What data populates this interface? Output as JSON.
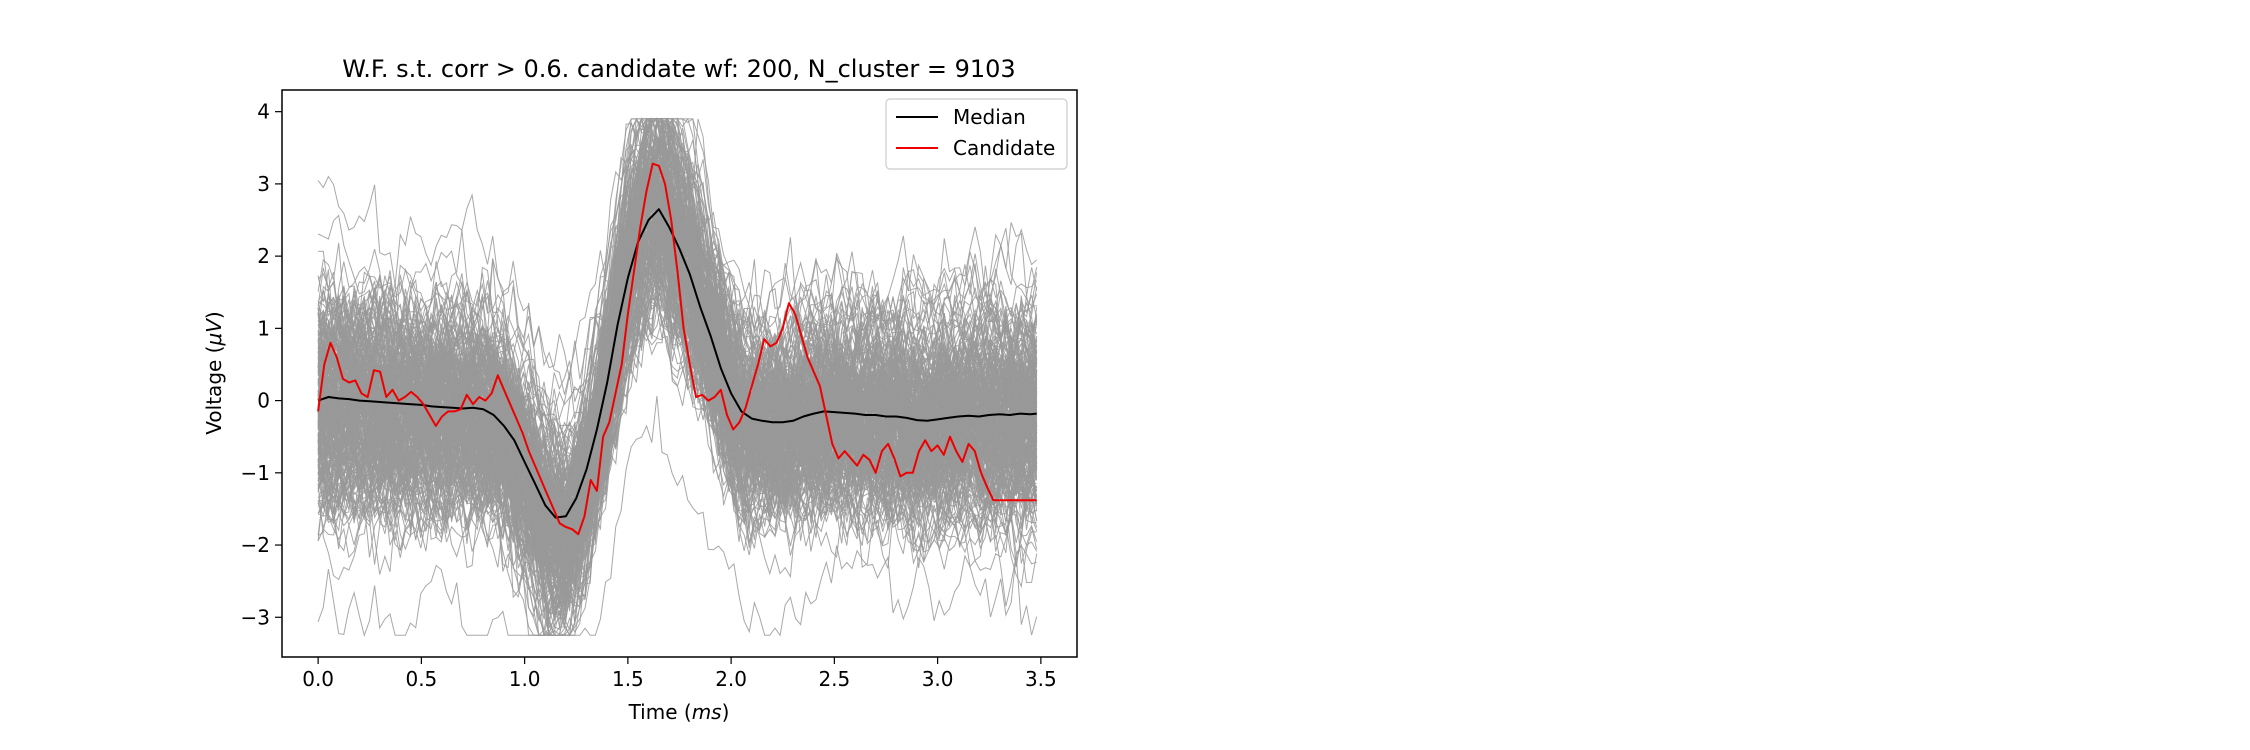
{
  "chart_data": {
    "type": "line",
    "title": "W.F. s.t. corr > 0.6. candidate wf: 200, N_cluster = 9103",
    "xlabel_prefix": "Time (",
    "xlabel_unit": "ms",
    "xlabel_suffix": ")",
    "ylabel_prefix": "Voltage (",
    "ylabel_unit": "μV",
    "ylabel_suffix": ")",
    "xlim": [
      -0.175,
      3.675
    ],
    "ylim": [
      -3.55,
      4.3
    ],
    "xticks": [
      0.0,
      0.5,
      1.0,
      1.5,
      2.0,
      2.5,
      3.0,
      3.5
    ],
    "xtick_labels": [
      "0.0",
      "0.5",
      "1.0",
      "1.5",
      "2.0",
      "2.5",
      "3.0",
      "3.5"
    ],
    "yticks": [
      -3,
      -2,
      -1,
      0,
      1,
      2,
      3,
      4
    ],
    "ytick_labels": [
      "−3",
      "−2",
      "−1",
      "0",
      "1",
      "2",
      "3",
      "4"
    ],
    "grid": false,
    "legend_position": "upper right",
    "legend": [
      {
        "label": "Median",
        "color": "#000000"
      },
      {
        "label": "Candidate",
        "color": "#ee0000"
      }
    ],
    "background_waveforms_color": "#999999",
    "series": [
      {
        "name": "Median",
        "color": "#000000",
        "x": [
          0.0,
          0.05,
          0.1,
          0.15,
          0.2,
          0.25,
          0.3,
          0.35,
          0.4,
          0.45,
          0.5,
          0.55,
          0.6,
          0.65,
          0.7,
          0.75,
          0.8,
          0.85,
          0.9,
          0.95,
          1.0,
          1.05,
          1.1,
          1.15,
          1.2,
          1.25,
          1.3,
          1.35,
          1.4,
          1.45,
          1.5,
          1.55,
          1.6,
          1.65,
          1.7,
          1.75,
          1.8,
          1.85,
          1.9,
          1.95,
          2.0,
          2.05,
          2.1,
          2.15,
          2.2,
          2.25,
          2.3,
          2.35,
          2.4,
          2.45,
          2.5,
          2.55,
          2.6,
          2.65,
          2.7,
          2.75,
          2.8,
          2.85,
          2.9,
          2.95,
          3.0,
          3.05,
          3.1,
          3.15,
          3.2,
          3.25,
          3.3,
          3.35,
          3.4,
          3.45,
          3.48
        ],
        "y": [
          0.0,
          0.05,
          0.03,
          0.02,
          0.0,
          -0.01,
          -0.02,
          -0.03,
          -0.04,
          -0.05,
          -0.06,
          -0.08,
          -0.09,
          -0.1,
          -0.11,
          -0.1,
          -0.12,
          -0.2,
          -0.35,
          -0.55,
          -0.85,
          -1.15,
          -1.45,
          -1.62,
          -1.6,
          -1.35,
          -0.95,
          -0.4,
          0.25,
          1.05,
          1.7,
          2.2,
          2.5,
          2.65,
          2.4,
          2.1,
          1.75,
          1.3,
          0.9,
          0.45,
          0.1,
          -0.15,
          -0.25,
          -0.28,
          -0.3,
          -0.3,
          -0.28,
          -0.22,
          -0.18,
          -0.15,
          -0.16,
          -0.17,
          -0.18,
          -0.2,
          -0.2,
          -0.22,
          -0.22,
          -0.24,
          -0.27,
          -0.28,
          -0.26,
          -0.24,
          -0.22,
          -0.21,
          -0.22,
          -0.2,
          -0.19,
          -0.2,
          -0.18,
          -0.19,
          -0.18
        ]
      },
      {
        "name": "Candidate",
        "color": "#ee0000",
        "x": [
          0.0,
          0.03,
          0.06,
          0.09,
          0.12,
          0.15,
          0.18,
          0.21,
          0.24,
          0.27,
          0.3,
          0.33,
          0.36,
          0.39,
          0.42,
          0.45,
          0.48,
          0.51,
          0.54,
          0.57,
          0.6,
          0.63,
          0.66,
          0.69,
          0.72,
          0.75,
          0.78,
          0.81,
          0.84,
          0.87,
          0.9,
          0.93,
          0.96,
          0.99,
          1.02,
          1.05,
          1.08,
          1.11,
          1.14,
          1.17,
          1.2,
          1.23,
          1.26,
          1.29,
          1.32,
          1.35,
          1.38,
          1.41,
          1.44,
          1.47,
          1.5,
          1.53,
          1.56,
          1.59,
          1.62,
          1.65,
          1.68,
          1.71,
          1.74,
          1.77,
          1.8,
          1.83,
          1.86,
          1.89,
          1.92,
          1.95,
          1.98,
          2.01,
          2.04,
          2.07,
          2.1,
          2.13,
          2.16,
          2.19,
          2.22,
          2.25,
          2.28,
          2.31,
          2.34,
          2.37,
          2.4,
          2.43,
          2.46,
          2.49,
          2.52,
          2.55,
          2.58,
          2.61,
          2.64,
          2.67,
          2.7,
          2.73,
          2.76,
          2.79,
          2.82,
          2.85,
          2.88,
          2.91,
          2.94,
          2.97,
          3.0,
          3.03,
          3.06,
          3.09,
          3.12,
          3.15,
          3.18,
          3.21,
          3.24,
          3.27,
          3.3,
          3.33,
          3.36,
          3.39,
          3.42,
          3.45,
          3.48
        ],
        "y": [
          -0.15,
          0.5,
          0.8,
          0.6,
          0.3,
          0.25,
          0.28,
          0.1,
          0.05,
          0.42,
          0.4,
          0.05,
          0.15,
          0.0,
          0.05,
          0.12,
          0.05,
          -0.05,
          -0.2,
          -0.35,
          -0.22,
          -0.15,
          -0.15,
          -0.12,
          0.08,
          -0.05,
          0.05,
          0.0,
          0.1,
          0.35,
          0.15,
          -0.05,
          -0.25,
          -0.45,
          -0.7,
          -0.9,
          -1.1,
          -1.3,
          -1.5,
          -1.7,
          -1.75,
          -1.78,
          -1.85,
          -1.6,
          -1.1,
          -1.25,
          -0.5,
          -0.3,
          0.1,
          0.5,
          1.2,
          1.8,
          2.4,
          2.9,
          3.28,
          3.25,
          3.0,
          2.5,
          1.8,
          1.0,
          0.5,
          0.05,
          0.08,
          0.0,
          0.05,
          0.15,
          -0.2,
          -0.4,
          -0.3,
          -0.1,
          0.2,
          0.5,
          0.85,
          0.75,
          0.8,
          1.0,
          1.35,
          1.2,
          0.9,
          0.6,
          0.4,
          0.2,
          -0.2,
          -0.6,
          -0.8,
          -0.7,
          -0.8,
          -0.9,
          -0.75,
          -0.82,
          -1.0,
          -0.7,
          -0.6,
          -0.8,
          -1.05,
          -1.0,
          -1.0,
          -0.7,
          -0.55,
          -0.7,
          -0.62,
          -0.75,
          -0.5,
          -0.7,
          -0.85,
          -0.6,
          -0.7,
          -1.0,
          -1.2,
          -1.38,
          -1.38,
          -1.38,
          -1.38,
          -1.38,
          -1.38,
          -1.38,
          -1.38
        ]
      }
    ]
  }
}
